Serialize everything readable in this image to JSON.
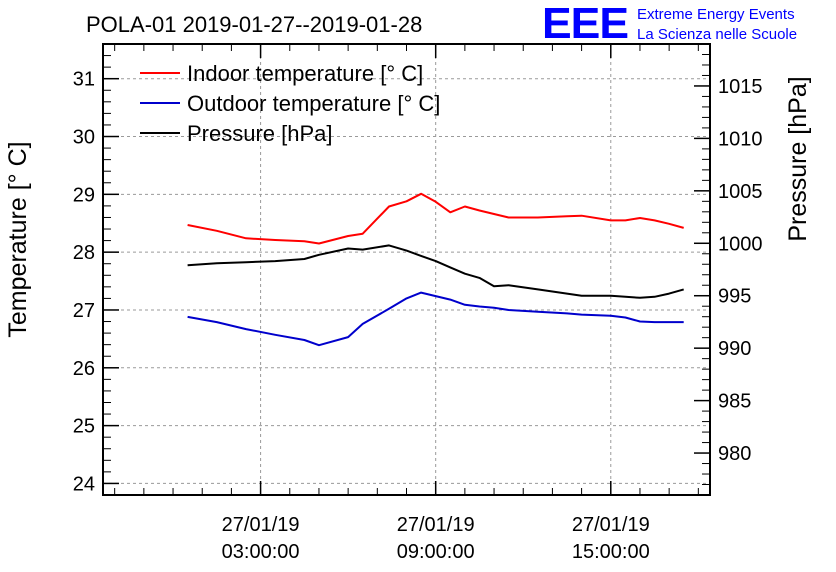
{
  "header": {
    "title": "POLA-01 2019-01-27--2019-01-28",
    "logo_text": "EEE",
    "logo_line1": "Extreme Energy Events",
    "logo_line2": "La Scienza nelle Scuole"
  },
  "chart_data": {
    "type": "line",
    "title": "POLA-01 2019-01-27--2019-01-28",
    "xlabel": "",
    "ylabel": "Temperature [° C]",
    "y2label": "Pressure [hPa]",
    "x_unit": "hours since 2019-01-27 00:00",
    "xlim": [
      -2.4,
      18.4
    ],
    "ylim": [
      23.8,
      31.6
    ],
    "y2lim": [
      976,
      1019
    ],
    "grid": true,
    "legend_position": "top-left",
    "x_ticks": [
      {
        "x": 3,
        "line1": "27/01/19",
        "line2": "03:00:00"
      },
      {
        "x": 9,
        "line1": "27/01/19",
        "line2": "09:00:00"
      },
      {
        "x": 15,
        "line1": "27/01/19",
        "line2": "15:00:00"
      }
    ],
    "y_ticks": [
      "24",
      "25",
      "26",
      "27",
      "28",
      "29",
      "30",
      "31"
    ],
    "y2_ticks": [
      "980",
      "985",
      "990",
      "995",
      "1000",
      "1005",
      "1010",
      "1015"
    ],
    "series": [
      {
        "name": "Indoor temperature [° C]",
        "color": "#ff0000",
        "axis": "left",
        "x": [
          0.5,
          1.5,
          2.5,
          3.5,
          4.5,
          5.0,
          6.0,
          6.5,
          7.4,
          8.0,
          8.5,
          9.0,
          9.5,
          10.0,
          10.5,
          11.0,
          11.5,
          12.5,
          13.5,
          14.0,
          15.0,
          15.5,
          16.0,
          16.5,
          17.0,
          17.5
        ],
        "y": [
          28.47,
          28.37,
          28.24,
          28.21,
          28.19,
          28.15,
          28.28,
          28.32,
          28.79,
          28.88,
          29.01,
          28.87,
          28.69,
          28.79,
          28.72,
          28.66,
          28.6,
          28.6,
          28.62,
          28.63,
          28.55,
          28.55,
          28.59,
          28.55,
          28.49,
          28.42
        ]
      },
      {
        "name": "Outdoor temperature [° C]",
        "color": "#0000cc",
        "axis": "left",
        "x": [
          0.5,
          1.5,
          2.5,
          3.5,
          4.5,
          5.0,
          6.0,
          6.5,
          7.4,
          8.0,
          8.5,
          9.0,
          9.5,
          10.0,
          10.5,
          11.0,
          11.5,
          12.5,
          13.5,
          14.0,
          15.0,
          15.5,
          16.0,
          16.5,
          17.0,
          17.5
        ],
        "y": [
          26.88,
          26.79,
          26.67,
          26.57,
          26.48,
          26.39,
          26.53,
          26.76,
          27.02,
          27.2,
          27.3,
          27.24,
          27.18,
          27.09,
          27.06,
          27.04,
          27.0,
          26.97,
          26.94,
          26.92,
          26.9,
          26.87,
          26.8,
          26.79,
          26.79,
          26.79
        ]
      },
      {
        "name": "Pressure [hPa]",
        "color": "#000000",
        "axis": "right",
        "x": [
          0.5,
          1.5,
          2.5,
          3.5,
          4.5,
          5.0,
          6.0,
          6.5,
          7.4,
          8.0,
          8.5,
          9.0,
          9.5,
          10.0,
          10.5,
          11.0,
          11.5,
          12.5,
          13.5,
          14.0,
          15.0,
          15.5,
          16.0,
          16.5,
          17.0,
          17.5
        ],
        "y": [
          997.9,
          998.1,
          998.2,
          998.3,
          998.5,
          998.9,
          999.5,
          999.4,
          999.8,
          999.3,
          998.8,
          998.3,
          997.7,
          997.1,
          996.7,
          995.9,
          996.0,
          995.6,
          995.2,
          995.0,
          995.0,
          994.9,
          994.8,
          994.9,
          995.2,
          995.6
        ]
      }
    ]
  }
}
